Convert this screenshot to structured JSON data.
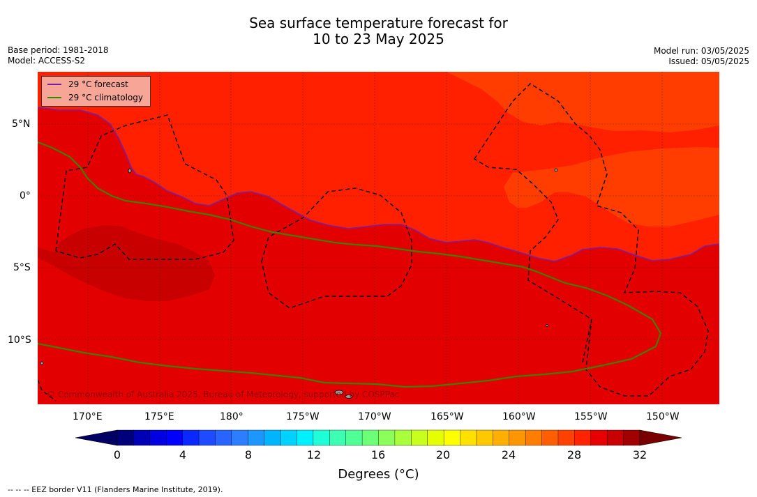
{
  "title": {
    "line1": "Sea surface temperature forecast for",
    "line2": "10 to 23 May 2025"
  },
  "meta": {
    "base_period": "Base period: 1981-2018",
    "model": "Model: ACCESS-S2",
    "model_run": "Model run: 03/05/2025",
    "issued": "Issued: 05/05/2025"
  },
  "map": {
    "lon_ticks": [
      "170°E",
      "175°E",
      "180°",
      "175°W",
      "170°W",
      "165°W",
      "160°W",
      "155°W",
      "150°W"
    ],
    "lat_ticks": [
      "5°N",
      "0°",
      "5°S",
      "10°S"
    ],
    "grid": true,
    "colors": {
      "sst_29_30": "#e20000",
      "sst_30_31": "#c80000",
      "sst_28_29": "#ff2000",
      "sst_27_28": "#ff3d00",
      "forecast_line": "#6a1a9a",
      "climatology_line": "#3f7f00"
    }
  },
  "legend": {
    "placement": "top-left",
    "items": [
      {
        "label": "29 °C  forecast",
        "color": "#7a1fa0"
      },
      {
        "label": "29 °C  climatology",
        "color": "#2e8b00"
      }
    ]
  },
  "copyright": "© Commonwealth of Australia 2025, Bureau of Meteorology, supported by COSPPac",
  "colorbar": {
    "ticks": [
      "0",
      "4",
      "8",
      "12",
      "16",
      "20",
      "24",
      "28",
      "32"
    ],
    "label": "Degrees (°C)",
    "range": [
      0,
      32
    ],
    "step": 1,
    "colors": [
      "#00007a",
      "#0000b4",
      "#0000e0",
      "#0000ff",
      "#0a28ff",
      "#1e4bff",
      "#2864ff",
      "#2c7dff",
      "#1e96ff",
      "#00b4ff",
      "#00d2ff",
      "#00f0ff",
      "#1effd8",
      "#3cffb4",
      "#50ff96",
      "#6eff78",
      "#8cff5a",
      "#aaff3c",
      "#c8ff1e",
      "#e6ff00",
      "#ffff00",
      "#ffe100",
      "#ffc800",
      "#ffaf00",
      "#ff9600",
      "#ff7d00",
      "#ff5f00",
      "#ff4100",
      "#ff2300",
      "#e60000",
      "#c80000",
      "#a00000"
    ],
    "under_color": "#000064",
    "over_color": "#780000"
  },
  "eez_note": "-- -- -- EEZ border V11 (Flanders Marine Institute, 2019)."
}
